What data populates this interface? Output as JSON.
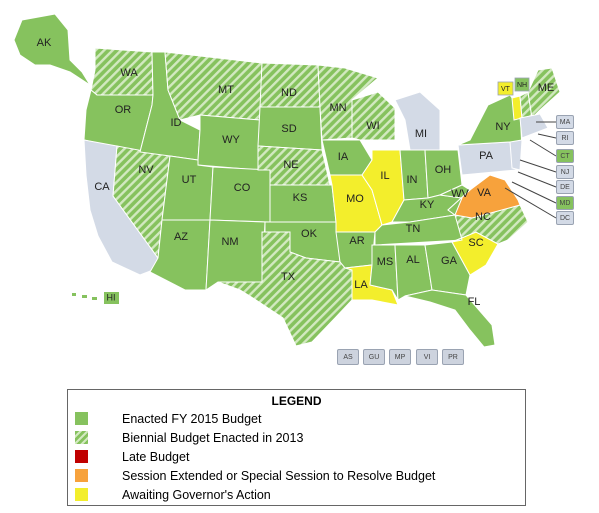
{
  "colors": {
    "enacted": "#86c25e",
    "biennial_base": "#86c25e",
    "biennial_stripe": "#d2e9c0",
    "late": "#c00000",
    "session_extended": "#f7a23c",
    "awaiting": "#f3ee2c",
    "no_data": "#d3dae6"
  },
  "map": {
    "states": {
      "AK": "AK",
      "WA": "WA",
      "OR": "OR",
      "CA": "CA",
      "NV": "NV",
      "ID": "ID",
      "MT": "MT",
      "WY": "WY",
      "UT": "UT",
      "AZ": "AZ",
      "CO": "CO",
      "NM": "NM",
      "ND": "ND",
      "SD": "SD",
      "NE": "NE",
      "KS": "KS",
      "OK": "OK",
      "TX": "TX",
      "MN": "MN",
      "IA": "IA",
      "MO": "MO",
      "AR": "AR",
      "LA": "LA",
      "WI": "WI",
      "IL": "IL",
      "MI": "MI",
      "IN": "IN",
      "OH": "OH",
      "KY": "KY",
      "TN": "TN",
      "MS": "MS",
      "AL": "AL",
      "GA": "GA",
      "FL": "FL",
      "SC": "SC",
      "NC": "NC",
      "VA": "VA",
      "WV": "WV",
      "PA": "PA",
      "NY": "NY",
      "VT": "VT",
      "NH": "NH",
      "ME": "ME",
      "HI": "HI"
    },
    "northeast_boxes": [
      "MA",
      "RI",
      "CT",
      "NJ",
      "DE",
      "MD",
      "DC"
    ],
    "territories": [
      "AS",
      "GU",
      "MP",
      "VI",
      "PR"
    ]
  },
  "legend": {
    "title": "LEGEND",
    "items": [
      {
        "label": "Enacted FY 2015 Budget"
      },
      {
        "label": "Biennial Budget Enacted in 2013"
      },
      {
        "label": "Late Budget"
      },
      {
        "label": "Session Extended or Special Session to Resolve Budget"
      },
      {
        "label": "Awaiting Governor's Action"
      }
    ]
  }
}
